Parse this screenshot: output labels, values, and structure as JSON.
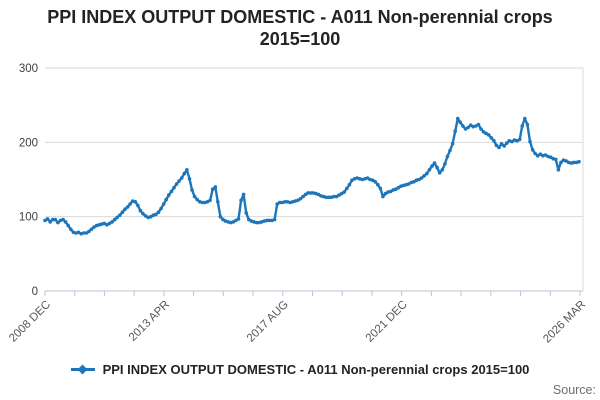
{
  "header": {
    "title_line1": "PPI INDEX OUTPUT DOMESTIC - A011 Non-perennial crops",
    "title_line2": "2015=100"
  },
  "legend": {
    "label": "PPI INDEX OUTPUT DOMESTIC - A011 Non-perennial crops 2015=100",
    "marker": "line-with-diamond",
    "color": "#1d76bb"
  },
  "footer": {
    "source_label": "Source:"
  },
  "chart_data": {
    "type": "line",
    "title": "PPI INDEX OUTPUT DOMESTIC - A011 Non-perennial crops 2015=100",
    "xlabel": "",
    "ylabel": "",
    "ylim": [
      0,
      300
    ],
    "y_ticks": [
      0,
      100,
      200,
      300
    ],
    "grid": "horizontal",
    "legend_position": "bottom",
    "line_color": "#1d76bb",
    "grid_color": "#d9d9d9",
    "axis_color": "#b9c4d6",
    "y_label_color": "#414042",
    "x_label_color": "#58585c",
    "n_x_ticks": 19,
    "x_tick_labels": [
      {
        "label": "2008 DEC",
        "tick": 0
      },
      {
        "label": "2013 APR",
        "tick": 4
      },
      {
        "label": "2017 AUG",
        "tick": 8
      },
      {
        "label": "2021 DEC",
        "tick": 12
      },
      {
        "label": "2026 MAR",
        "tick": 18
      }
    ],
    "x_start_label": "2008 DEC",
    "x_end_label": "2026 MAR",
    "series": [
      {
        "name": "PPI INDEX OUTPUT DOMESTIC - A011 Non-perennial crops 2015=100",
        "frequency": "monthly",
        "values": [
          95,
          97,
          93,
          96,
          96,
          92,
          95,
          96,
          93,
          88,
          83,
          79,
          78,
          79,
          77,
          78,
          78,
          80,
          83,
          86,
          88,
          89,
          90,
          91,
          89,
          91,
          93,
          96,
          99,
          102,
          106,
          110,
          113,
          117,
          121,
          120,
          115,
          108,
          104,
          101,
          99,
          100,
          102,
          103,
          106,
          111,
          117,
          123,
          129,
          134,
          139,
          144,
          148,
          152,
          158,
          163,
          151,
          136,
          127,
          123,
          120,
          119,
          119,
          120,
          122,
          137,
          140,
          120,
          100,
          96,
          94,
          93,
          92,
          93,
          95,
          97,
          122,
          130,
          105,
          96,
          94,
          93,
          92,
          92,
          93,
          94,
          95,
          95,
          95,
          96,
          117,
          119,
          119,
          120,
          120,
          119,
          120,
          121,
          122,
          124,
          127,
          130,
          132,
          132,
          132,
          131,
          130,
          128,
          127,
          126,
          126,
          126,
          127,
          127,
          129,
          131,
          133,
          138,
          143,
          149,
          151,
          152,
          151,
          150,
          151,
          152,
          150,
          149,
          147,
          143,
          138,
          127,
          131,
          133,
          134,
          136,
          137,
          139,
          141,
          142,
          143,
          144,
          146,
          147,
          149,
          150,
          152,
          155,
          158,
          163,
          168,
          172,
          166,
          159,
          163,
          171,
          181,
          189,
          198,
          215,
          232,
          227,
          222,
          218,
          220,
          223,
          221,
          222,
          224,
          218,
          214,
          212,
          210,
          206,
          202,
          196,
          193,
          198,
          195,
          199,
          202,
          201,
          203,
          202,
          204,
          222,
          232,
          224,
          201,
          190,
          185,
          182,
          184,
          182,
          183,
          181,
          180,
          178,
          177,
          163,
          173,
          176,
          175,
          173,
          172,
          173,
          173,
          174
        ]
      }
    ]
  }
}
